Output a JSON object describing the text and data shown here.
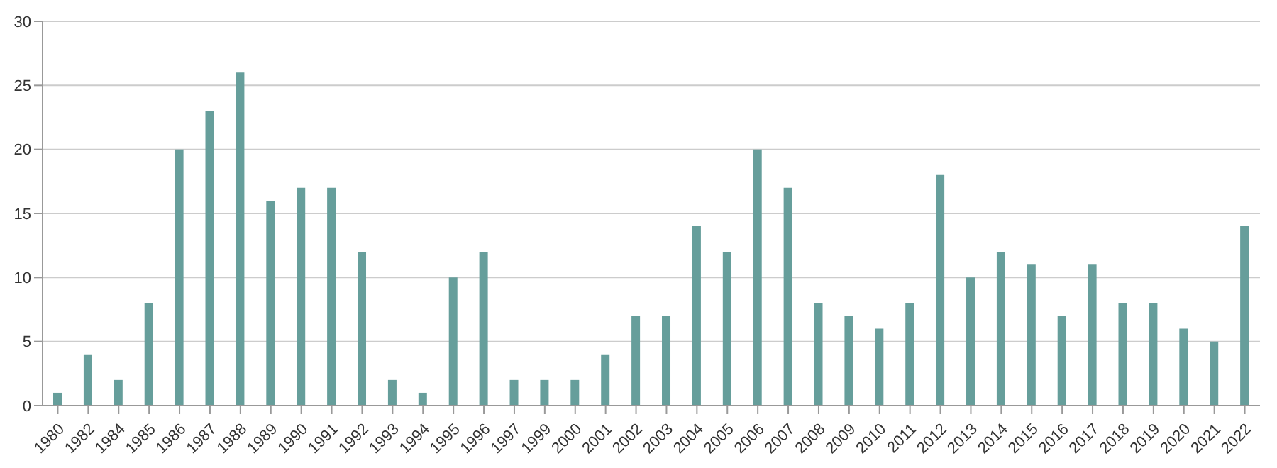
{
  "chart_data": {
    "type": "bar",
    "categories": [
      "1980",
      "1982",
      "1984",
      "1985",
      "1986",
      "1987",
      "1988",
      "1989",
      "1990",
      "1991",
      "1992",
      "1993",
      "1994",
      "1995",
      "1996",
      "1997",
      "1999",
      "2000",
      "2001",
      "2002",
      "2003",
      "2004",
      "2005",
      "2006",
      "2007",
      "2008",
      "2009",
      "2010",
      "2011",
      "2012",
      "2013",
      "2014",
      "2015",
      "2016",
      "2017",
      "2018",
      "2019",
      "2020",
      "2021",
      "2022"
    ],
    "values": [
      1,
      4,
      2,
      8,
      20,
      23,
      26,
      16,
      17,
      17,
      12,
      2,
      1,
      10,
      12,
      2,
      2,
      2,
      4,
      7,
      7,
      14,
      12,
      20,
      17,
      8,
      7,
      6,
      8,
      18,
      10,
      12,
      11,
      7,
      11,
      8,
      8,
      6,
      5,
      14
    ],
    "color": "#669e9b",
    "ylim": [
      0,
      30
    ],
    "yticks": [
      0,
      5,
      10,
      15,
      20,
      25,
      30
    ],
    "grid": "y"
  }
}
